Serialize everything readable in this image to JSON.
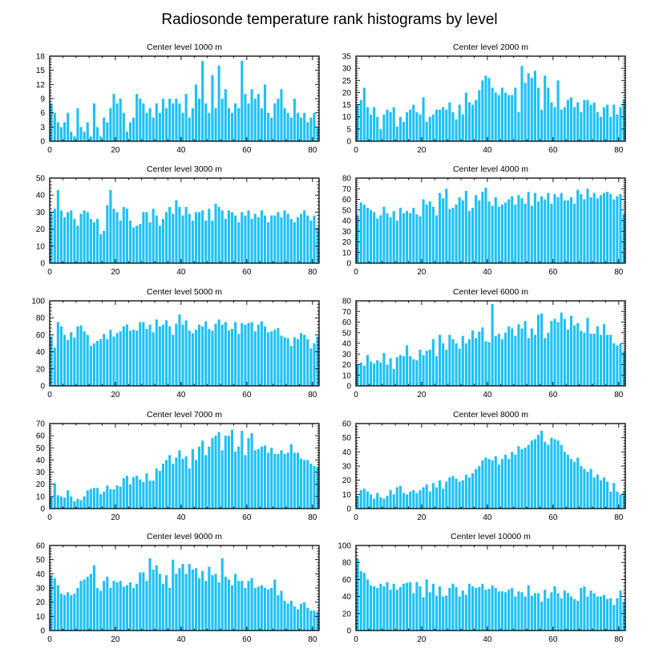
{
  "figure": {
    "title": "Radiosonde temperature rank histograms by level",
    "bar_color": "#1ec0f4",
    "axis_color": "#000000",
    "background": "#ffffff"
  },
  "chart_data": [
    {
      "type": "bar",
      "title": "Center level 1000 m",
      "x_start": 0,
      "xlim": [
        0,
        82
      ],
      "xticks": [
        0,
        20,
        40,
        60,
        80
      ],
      "ylim": [
        0,
        18
      ],
      "yticks": [
        0,
        3,
        6,
        9,
        12,
        15,
        18
      ],
      "values": [
        8,
        6,
        4,
        3,
        4,
        6,
        2,
        1,
        7,
        3,
        2,
        4,
        1,
        8,
        3,
        1,
        5,
        4,
        7,
        10,
        8,
        9,
        6,
        2,
        4,
        5,
        10,
        9,
        8,
        6,
        7,
        5,
        8,
        6,
        9,
        7,
        9,
        8,
        9,
        8,
        6,
        10,
        5,
        7,
        12,
        9,
        17,
        8,
        6,
        14,
        7,
        16,
        9,
        11,
        7,
        6,
        8,
        7,
        17,
        10,
        8,
        11,
        9,
        10,
        7,
        12,
        6,
        5,
        8,
        9,
        11,
        7,
        6,
        5,
        9,
        6,
        5,
        6,
        4,
        5,
        6,
        3
      ],
      "xlabel": "",
      "ylabel": ""
    },
    {
      "type": "bar",
      "title": "Center level 2000 m",
      "x_start": 0,
      "xlim": [
        0,
        82
      ],
      "xticks": [
        0,
        20,
        40,
        60,
        80
      ],
      "ylim": [
        0,
        35
      ],
      "yticks": [
        0,
        5,
        10,
        15,
        20,
        25,
        30,
        35
      ],
      "values": [
        15,
        17,
        22,
        14,
        11,
        14,
        10,
        5,
        11,
        13,
        12,
        14,
        6,
        10,
        8,
        12,
        13,
        15,
        12,
        11,
        18,
        8,
        10,
        11,
        13,
        13,
        14,
        13,
        16,
        12,
        9,
        15,
        11,
        20,
        16,
        15,
        17,
        21,
        25,
        27,
        26,
        22,
        20,
        19,
        22,
        20,
        19,
        19,
        22,
        12,
        31,
        24,
        28,
        26,
        29,
        22,
        13,
        27,
        22,
        16,
        14,
        25,
        13,
        14,
        17,
        18,
        14,
        16,
        12,
        17,
        17,
        15,
        16,
        12,
        10,
        14,
        15,
        10,
        15,
        11,
        14,
        17
      ],
      "xlabel": "",
      "ylabel": ""
    },
    {
      "type": "bar",
      "title": "Center level 3000 m",
      "x_start": 0,
      "xlim": [
        0,
        82
      ],
      "xticks": [
        0,
        20,
        40,
        60,
        80
      ],
      "ylim": [
        0,
        50
      ],
      "yticks": [
        0,
        10,
        20,
        30,
        40,
        50
      ],
      "values": [
        30,
        32,
        43,
        31,
        27,
        30,
        31,
        26,
        22,
        29,
        31,
        30,
        26,
        24,
        26,
        17,
        19,
        34,
        43,
        32,
        30,
        25,
        33,
        32,
        25,
        21,
        22,
        23,
        30,
        30,
        24,
        32,
        28,
        22,
        26,
        30,
        33,
        29,
        37,
        33,
        28,
        33,
        29,
        25,
        30,
        30,
        31,
        25,
        32,
        25,
        35,
        33,
        31,
        26,
        31,
        30,
        28,
        24,
        30,
        28,
        31,
        26,
        29,
        27,
        31,
        28,
        24,
        28,
        28,
        30,
        27,
        31,
        29,
        26,
        24,
        27,
        29,
        31,
        28,
        25,
        28,
        21
      ],
      "xlabel": "",
      "ylabel": ""
    },
    {
      "type": "bar",
      "title": "Center level 4000 m",
      "x_start": 0,
      "xlim": [
        0,
        82
      ],
      "xticks": [
        0,
        20,
        40,
        60,
        80
      ],
      "ylim": [
        0,
        80
      ],
      "yticks": [
        0,
        10,
        20,
        30,
        40,
        50,
        60,
        70,
        80
      ],
      "values": [
        45,
        57,
        55,
        52,
        50,
        48,
        42,
        45,
        53,
        47,
        43,
        49,
        40,
        52,
        47,
        49,
        47,
        52,
        46,
        44,
        60,
        55,
        58,
        53,
        45,
        66,
        61,
        70,
        51,
        52,
        55,
        62,
        59,
        68,
        49,
        52,
        64,
        59,
        67,
        71,
        58,
        54,
        62,
        53,
        55,
        57,
        60,
        63,
        55,
        64,
        61,
        56,
        67,
        54,
        66,
        58,
        63,
        60,
        66,
        56,
        65,
        62,
        66,
        59,
        59,
        62,
        56,
        69,
        65,
        60,
        70,
        62,
        66,
        61,
        64,
        66,
        67,
        65,
        60,
        63,
        65,
        46
      ],
      "xlabel": "",
      "ylabel": ""
    },
    {
      "type": "bar",
      "title": "Center level 5000 m",
      "x_start": 0,
      "xlim": [
        0,
        82
      ],
      "xticks": [
        0,
        20,
        40,
        60,
        80
      ],
      "ylim": [
        0,
        100
      ],
      "yticks": [
        0,
        20,
        40,
        60,
        80,
        100
      ],
      "values": [
        58,
        45,
        75,
        70,
        60,
        54,
        63,
        57,
        70,
        71,
        64,
        60,
        47,
        50,
        53,
        55,
        61,
        55,
        66,
        58,
        62,
        64,
        70,
        72,
        65,
        66,
        65,
        75,
        75,
        67,
        72,
        63,
        78,
        70,
        72,
        77,
        70,
        60,
        73,
        84,
        72,
        77,
        65,
        62,
        66,
        72,
        70,
        76,
        67,
        65,
        73,
        78,
        72,
        75,
        65,
        67,
        75,
        61,
        74,
        72,
        74,
        75,
        64,
        72,
        76,
        70,
        63,
        64,
        66,
        68,
        59,
        57,
        56,
        47,
        57,
        55,
        62,
        60,
        55,
        44,
        50,
        58
      ],
      "xlabel": "",
      "ylabel": ""
    },
    {
      "type": "bar",
      "title": "Center level 6000 m",
      "x_start": 0,
      "xlim": [
        0,
        82
      ],
      "xticks": [
        0,
        20,
        40,
        60,
        80
      ],
      "ylim": [
        0,
        80
      ],
      "yticks": [
        0,
        10,
        20,
        30,
        40,
        50,
        60,
        70,
        80
      ],
      "values": [
        20,
        22,
        19,
        29,
        23,
        21,
        24,
        22,
        31,
        20,
        26,
        16,
        27,
        29,
        28,
        38,
        28,
        25,
        24,
        34,
        29,
        33,
        34,
        44,
        28,
        48,
        40,
        34,
        48,
        44,
        40,
        35,
        47,
        40,
        44,
        52,
        45,
        51,
        55,
        42,
        41,
        77,
        47,
        49,
        44,
        50,
        56,
        54,
        47,
        58,
        54,
        61,
        45,
        54,
        48,
        67,
        68,
        45,
        50,
        61,
        63,
        60,
        69,
        63,
        53,
        66,
        57,
        59,
        52,
        50,
        64,
        49,
        49,
        56,
        48,
        58,
        48,
        48,
        40,
        38,
        40,
        32
      ],
      "xlabel": "",
      "ylabel": ""
    },
    {
      "type": "bar",
      "title": "Center level 7000 m",
      "x_start": 0,
      "xlim": [
        0,
        82
      ],
      "xticks": [
        0,
        20,
        40,
        60,
        80
      ],
      "ylim": [
        0,
        70
      ],
      "yticks": [
        0,
        10,
        20,
        30,
        40,
        50,
        60,
        70
      ],
      "values": [
        10,
        21,
        11,
        10,
        9,
        15,
        10,
        6,
        8,
        7,
        10,
        15,
        16,
        17,
        17,
        12,
        14,
        19,
        16,
        16,
        19,
        18,
        25,
        27,
        20,
        26,
        27,
        24,
        22,
        29,
        23,
        23,
        33,
        31,
        37,
        40,
        44,
        37,
        42,
        48,
        41,
        43,
        33,
        49,
        40,
        51,
        56,
        44,
        51,
        58,
        60,
        63,
        48,
        60,
        60,
        65,
        47,
        51,
        64,
        44,
        58,
        62,
        48,
        49,
        51,
        52,
        46,
        50,
        45,
        45,
        48,
        45,
        46,
        53,
        46,
        46,
        41,
        40,
        40,
        37,
        35,
        34
      ],
      "xlabel": "",
      "ylabel": ""
    },
    {
      "type": "bar",
      "title": "Center level 8000 m",
      "x_start": 0,
      "xlim": [
        0,
        82
      ],
      "xticks": [
        0,
        20,
        40,
        60,
        80
      ],
      "ylim": [
        0,
        60
      ],
      "yticks": [
        0,
        10,
        20,
        30,
        40,
        50,
        60
      ],
      "values": [
        9,
        13,
        14,
        12,
        10,
        7,
        11,
        8,
        7,
        9,
        13,
        10,
        15,
        16,
        11,
        10,
        12,
        13,
        11,
        13,
        15,
        17,
        12,
        18,
        15,
        20,
        14,
        19,
        22,
        23,
        21,
        19,
        20,
        24,
        22,
        25,
        28,
        30,
        34,
        36,
        35,
        34,
        37,
        31,
        35,
        38,
        35,
        40,
        38,
        44,
        42,
        43,
        45,
        48,
        49,
        52,
        55,
        47,
        45,
        50,
        49,
        48,
        45,
        40,
        38,
        35,
        33,
        36,
        30,
        28,
        26,
        28,
        22,
        24,
        20,
        22,
        19,
        12,
        18,
        12,
        10,
        12
      ],
      "xlabel": "",
      "ylabel": ""
    },
    {
      "type": "bar",
      "title": "Center level 9000 m",
      "x_start": 0,
      "xlim": [
        0,
        82
      ],
      "xticks": [
        0,
        20,
        40,
        60,
        80
      ],
      "ylim": [
        0,
        60
      ],
      "yticks": [
        0,
        10,
        20,
        30,
        40,
        50,
        60
      ],
      "values": [
        39,
        37,
        32,
        26,
        25,
        27,
        25,
        26,
        30,
        35,
        36,
        38,
        40,
        46,
        30,
        28,
        35,
        38,
        30,
        35,
        34,
        35,
        31,
        32,
        34,
        30,
        33,
        41,
        41,
        35,
        51,
        43,
        46,
        40,
        33,
        39,
        30,
        50,
        40,
        44,
        47,
        40,
        47,
        43,
        44,
        37,
        42,
        35,
        45,
        39,
        40,
        34,
        51,
        38,
        36,
        32,
        40,
        35,
        35,
        30,
        35,
        37,
        30,
        31,
        32,
        30,
        29,
        30,
        36,
        25,
        28,
        21,
        19,
        21,
        17,
        15,
        19,
        20,
        16,
        14,
        14,
        13
      ],
      "xlabel": "",
      "ylabel": ""
    },
    {
      "type": "bar",
      "title": "Center level 10000 m",
      "x_start": 0,
      "xlim": [
        0,
        82
      ],
      "xticks": [
        0,
        20,
        40,
        60,
        80
      ],
      "ylim": [
        0,
        100
      ],
      "yticks": [
        0,
        20,
        40,
        60,
        80,
        100
      ],
      "values": [
        84,
        70,
        68,
        60,
        53,
        52,
        50,
        55,
        52,
        57,
        48,
        55,
        48,
        51,
        55,
        56,
        57,
        44,
        57,
        52,
        39,
        60,
        45,
        55,
        41,
        52,
        40,
        41,
        50,
        55,
        51,
        40,
        47,
        42,
        55,
        52,
        50,
        51,
        55,
        48,
        49,
        53,
        50,
        46,
        46,
        45,
        48,
        50,
        40,
        46,
        45,
        40,
        53,
        41,
        44,
        44,
        34,
        48,
        38,
        45,
        52,
        44,
        38,
        47,
        44,
        40,
        37,
        35,
        50,
        52,
        40,
        47,
        44,
        40,
        40,
        42,
        37,
        38,
        30,
        38,
        47,
        34
      ],
      "xlabel": "",
      "ylabel": ""
    }
  ]
}
